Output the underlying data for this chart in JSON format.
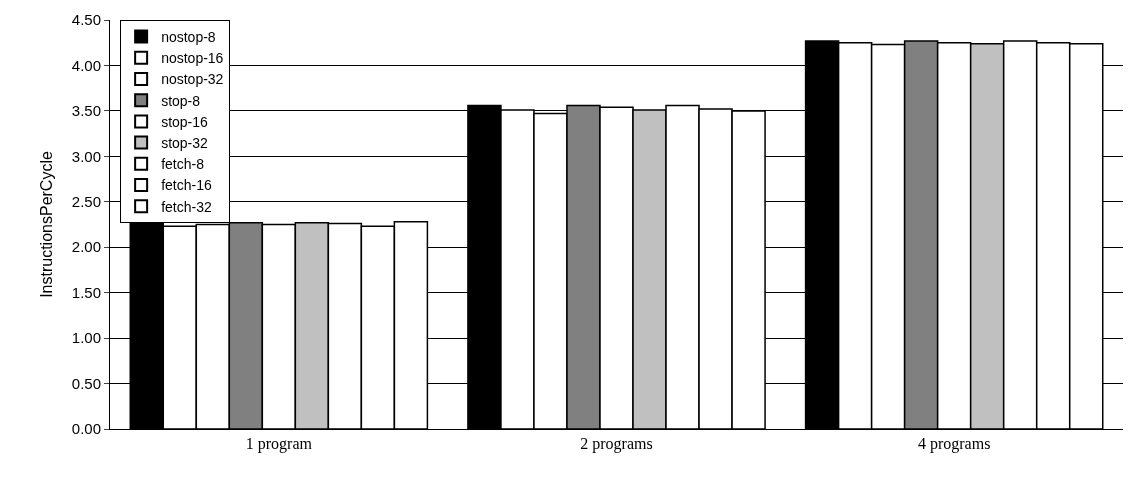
{
  "chart_data": {
    "type": "bar",
    "ylabel": "InstructionsPerCycle",
    "categories": [
      "1 program",
      "2 programs",
      "4 programs"
    ],
    "series": [
      {
        "name": "nostop-8",
        "color": "#000000",
        "values": [
          2.27,
          3.56,
          4.27
        ]
      },
      {
        "name": "nostop-16",
        "color": "#ffffff",
        "values": [
          2.23,
          3.51,
          4.25
        ]
      },
      {
        "name": "nostop-32",
        "color": "#ffffff",
        "values": [
          2.25,
          3.47,
          4.23
        ]
      },
      {
        "name": "stop-8",
        "color": "#808080",
        "values": [
          2.27,
          3.56,
          4.27
        ]
      },
      {
        "name": "stop-16",
        "color": "#ffffff",
        "values": [
          2.25,
          3.54,
          4.25
        ]
      },
      {
        "name": "stop-32",
        "color": "#c0c0c0",
        "values": [
          2.27,
          3.51,
          4.24
        ]
      },
      {
        "name": "fetch-8",
        "color": "#ffffff",
        "values": [
          2.26,
          3.56,
          4.27
        ]
      },
      {
        "name": "fetch-16",
        "color": "#ffffff",
        "values": [
          2.23,
          3.52,
          4.25
        ]
      },
      {
        "name": "fetch-32",
        "color": "#ffffff",
        "values": [
          2.28,
          3.5,
          4.24
        ]
      }
    ],
    "ylim": [
      0,
      4.5
    ],
    "yticks": [
      {
        "value": 0,
        "label": "0.00"
      },
      {
        "value": 0.5,
        "label": "0.50"
      },
      {
        "value": 1,
        "label": "1.00"
      },
      {
        "value": 1.5,
        "label": "1.50"
      },
      {
        "value": 2,
        "label": "2.00"
      },
      {
        "value": 2.5,
        "label": "2.50"
      },
      {
        "value": 3,
        "label": "3.00"
      },
      {
        "value": 3.5,
        "label": "3.50"
      },
      {
        "value": 4,
        "label": "4.00"
      },
      {
        "value": 4.5,
        "label": "4.50"
      }
    ],
    "grid": "y",
    "legend": "top left"
  }
}
